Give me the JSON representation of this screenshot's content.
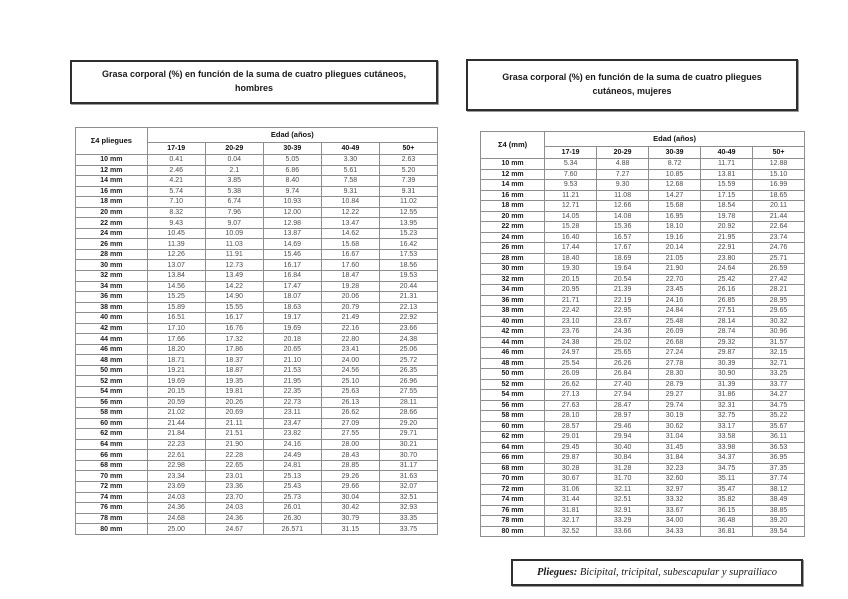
{
  "left_panel": {
    "title": "Grasa corporal (%) en función de la suma de cuatro pliegues cutáneos, hombres",
    "table": {
      "corner_header": "Σ4 pliegues",
      "group_header": "Edad (años)",
      "columns": [
        "17-19",
        "20-29",
        "30-39",
        "40-49",
        "50+"
      ],
      "rows": [
        [
          "10 mm",
          "0.41",
          "0.04",
          "5.05",
          "3.30",
          "2.63"
        ],
        [
          "12 mm",
          "2.46",
          "2.1",
          "6.86",
          "5.61",
          "5.20"
        ],
        [
          "14 mm",
          "4.21",
          "3.85",
          "8.40",
          "7.58",
          "7.39"
        ],
        [
          "16 mm",
          "5.74",
          "5.38",
          "9.74",
          "9.31",
          "9.31"
        ],
        [
          "18 mm",
          "7.10",
          "6.74",
          "10.93",
          "10.84",
          "11.02"
        ],
        [
          "20 mm",
          "8.32",
          "7.96",
          "12.00",
          "12.22",
          "12.55"
        ],
        [
          "22 mm",
          "9.43",
          "9.07",
          "12.98",
          "13.47",
          "13.95"
        ],
        [
          "24 mm",
          "10.45",
          "10.09",
          "13.87",
          "14.62",
          "15.23"
        ],
        [
          "26 mm",
          "11.39",
          "11.03",
          "14.69",
          "15.68",
          "16.42"
        ],
        [
          "28 mm",
          "12.26",
          "11.91",
          "15.46",
          "16.67",
          "17.53"
        ],
        [
          "30 mm",
          "13.07",
          "12.73",
          "16.17",
          "17.60",
          "18.56"
        ],
        [
          "32 mm",
          "13.84",
          "13.49",
          "16.84",
          "18.47",
          "19.53"
        ],
        [
          "34 mm",
          "14.56",
          "14.22",
          "17.47",
          "19.28",
          "20.44"
        ],
        [
          "36 mm",
          "15.25",
          "14.90",
          "18.07",
          "20.06",
          "21.31"
        ],
        [
          "38 mm",
          "15.89",
          "15.55",
          "18.63",
          "20.79",
          "22.13"
        ],
        [
          "40 mm",
          "16.51",
          "16.17",
          "19.17",
          "21.49",
          "22.92"
        ],
        [
          "42 mm",
          "17.10",
          "16.76",
          "19.69",
          "22.16",
          "23.66"
        ],
        [
          "44 mm",
          "17.66",
          "17.32",
          "20.18",
          "22.80",
          "24.38"
        ],
        [
          "46 mm",
          "18.20",
          "17.86",
          "20.65",
          "23.41",
          "25.06"
        ],
        [
          "48 mm",
          "18.71",
          "18.37",
          "21.10",
          "24.00",
          "25.72"
        ],
        [
          "50 mm",
          "19.21",
          "18.87",
          "21.53",
          "24.56",
          "26.35"
        ],
        [
          "52 mm",
          "19.69",
          "19.35",
          "21.95",
          "25.10",
          "26.96"
        ],
        [
          "54 mm",
          "20.15",
          "19.81",
          "22.35",
          "25.63",
          "27.55"
        ],
        [
          "56 mm",
          "20.59",
          "20.26",
          "22.73",
          "26.13",
          "28.11"
        ],
        [
          "58 mm",
          "21.02",
          "20.69",
          "23.11",
          "26.62",
          "28.66"
        ],
        [
          "60 mm",
          "21.44",
          "21.11",
          "23.47",
          "27.09",
          "29.20"
        ],
        [
          "62 mm",
          "21.84",
          "21.51",
          "23.82",
          "27.55",
          "29.71"
        ],
        [
          "64 mm",
          "22.23",
          "21.90",
          "24.16",
          "28.00",
          "30.21"
        ],
        [
          "66 mm",
          "22.61",
          "22.28",
          "24.49",
          "28.43",
          "30.70"
        ],
        [
          "68 mm",
          "22.98",
          "22.65",
          "24.81",
          "28.85",
          "31.17"
        ],
        [
          "70 mm",
          "23.34",
          "23.01",
          "25.13",
          "29.26",
          "31.63"
        ],
        [
          "72 mm",
          "23.69",
          "23.36",
          "25.43",
          "29.66",
          "32.07"
        ],
        [
          "74 mm",
          "24.03",
          "23.70",
          "25.73",
          "30.04",
          "32.51"
        ],
        [
          "76 mm",
          "24.36",
          "24.03",
          "26.01",
          "30.42",
          "32.93"
        ],
        [
          "78 mm",
          "24.68",
          "24.36",
          "26.30",
          "30.79",
          "33.35"
        ],
        [
          "80 mm",
          "25.00",
          "24.67",
          "26.571",
          "31.15",
          "33.75"
        ]
      ]
    }
  },
  "right_panel": {
    "title": "Grasa corporal (%) en función de la suma de cuatro pliegues cutáneos, mujeres",
    "table": {
      "corner_header": "Σ4 (mm)",
      "group_header": "Edad (años)",
      "columns": [
        "17-19",
        "20-29",
        "30-39",
        "40-49",
        "50+"
      ],
      "rows": [
        [
          "10 mm",
          "5.34",
          "4.88",
          "8.72",
          "11.71",
          "12.88"
        ],
        [
          "12 mm",
          "7.60",
          "7.27",
          "10.85",
          "13.81",
          "15.10"
        ],
        [
          "14 mm",
          "9.53",
          "9.30",
          "12.68",
          "15.59",
          "16.99"
        ],
        [
          "16 mm",
          "11.21",
          "11.08",
          "14.27",
          "17.15",
          "18.65"
        ],
        [
          "18 mm",
          "12.71",
          "12.66",
          "15.68",
          "18.54",
          "20.11"
        ],
        [
          "20 mm",
          "14.05",
          "14.08",
          "16.95",
          "19.78",
          "21.44"
        ],
        [
          "22 mm",
          "15.28",
          "15.36",
          "18.10",
          "20.92",
          "22.64"
        ],
        [
          "24 mm",
          "16.40",
          "16.57",
          "19.16",
          "21.95",
          "23.74"
        ],
        [
          "26 mm",
          "17.44",
          "17.67",
          "20.14",
          "22.91",
          "24.76"
        ],
        [
          "28 mm",
          "18.40",
          "18.69",
          "21.05",
          "23.80",
          "25.71"
        ],
        [
          "30 mm",
          "19.30",
          "19.64",
          "21.90",
          "24.64",
          "26.59"
        ],
        [
          "32 mm",
          "20.15",
          "20.54",
          "22.70",
          "25.42",
          "27.42"
        ],
        [
          "34 mm",
          "20.95",
          "21.39",
          "23.45",
          "26.16",
          "28.21"
        ],
        [
          "36 mm",
          "21.71",
          "22.19",
          "24.16",
          "26.85",
          "28.95"
        ],
        [
          "38 mm",
          "22.42",
          "22.95",
          "24.84",
          "27.51",
          "29.65"
        ],
        [
          "40 mm",
          "23.10",
          "23.67",
          "25.48",
          "28.14",
          "30.32"
        ],
        [
          "42 mm",
          "23.76",
          "24.36",
          "26.09",
          "28.74",
          "30.96"
        ],
        [
          "44 mm",
          "24.38",
          "25.02",
          "26.68",
          "29.32",
          "31.57"
        ],
        [
          "46 mm",
          "24.97",
          "25.65",
          "27.24",
          "29.87",
          "32.15"
        ],
        [
          "48 mm",
          "25.54",
          "26.26",
          "27.78",
          "30.39",
          "32.71"
        ],
        [
          "50 mm",
          "26.09",
          "26.84",
          "28.30",
          "30.90",
          "33.25"
        ],
        [
          "52 mm",
          "26.62",
          "27.40",
          "28.79",
          "31.39",
          "33.77"
        ],
        [
          "54 mm",
          "27.13",
          "27.94",
          "29.27",
          "31.86",
          "34.27"
        ],
        [
          "56 mm",
          "27.63",
          "28.47",
          "29.74",
          "32.31",
          "34.75"
        ],
        [
          "58 mm",
          "28.10",
          "28.97",
          "30.19",
          "32.75",
          "35.22"
        ],
        [
          "60 mm",
          "28.57",
          "29.46",
          "30.62",
          "33.17",
          "35.67"
        ],
        [
          "62 mm",
          "29.01",
          "29.94",
          "31.04",
          "33.58",
          "36.11"
        ],
        [
          "64 mm",
          "29.45",
          "30.40",
          "31.45",
          "33.98",
          "36.53"
        ],
        [
          "66 mm",
          "29.87",
          "30.84",
          "31.84",
          "34.37",
          "36.95"
        ],
        [
          "68 mm",
          "30.28",
          "31.28",
          "32.23",
          "34.75",
          "37.35"
        ],
        [
          "70 mm",
          "30.67",
          "31.70",
          "32.60",
          "35.11",
          "37.74"
        ],
        [
          "72 mm",
          "31.06",
          "32.11",
          "32.97",
          "35.47",
          "38.12"
        ],
        [
          "74 mm",
          "31.44",
          "32.51",
          "33.32",
          "35.82",
          "38.49"
        ],
        [
          "76 mm",
          "31.81",
          "32.91",
          "33.67",
          "36.15",
          "38.85"
        ],
        [
          "78 mm",
          "32.17",
          "33.29",
          "34.00",
          "36.48",
          "39.20"
        ],
        [
          "80 mm",
          "32.52",
          "33.66",
          "34.33",
          "36.81",
          "39.54"
        ]
      ]
    }
  },
  "footer": {
    "bold": "Pliegues:",
    "rest": " Bicipital, tricipital, subescapular y suprailiaco"
  }
}
